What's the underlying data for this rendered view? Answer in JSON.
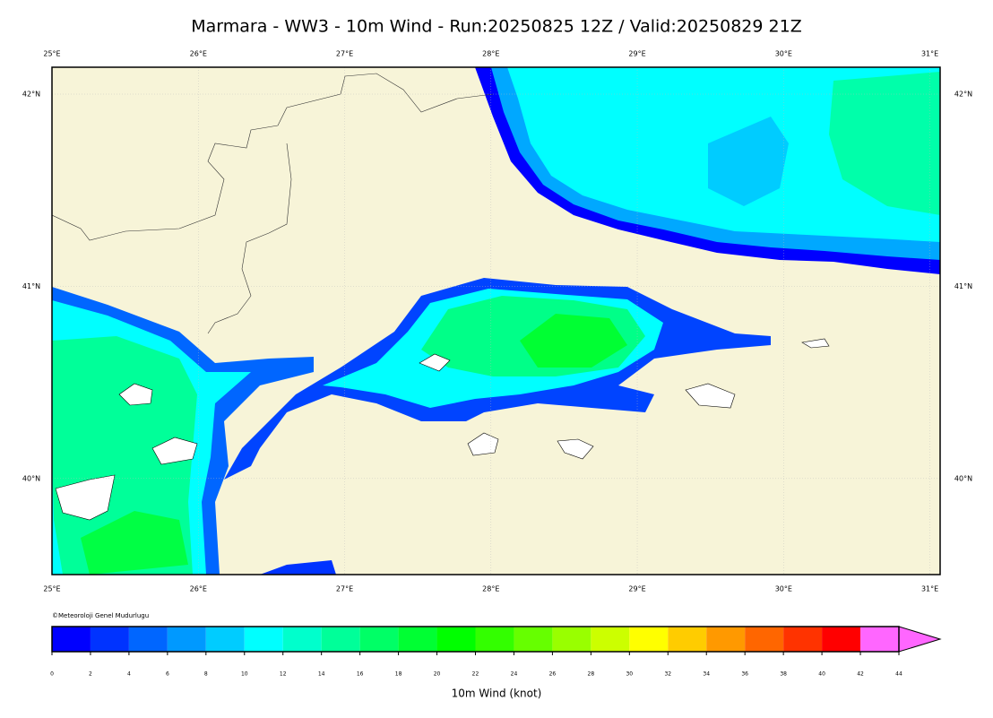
{
  "title": "Marmara - WW3 - 10m Wind - Run:20250825 12Z / Valid:20250829 21Z",
  "map": {
    "lonlim": [
      25,
      31.07
    ],
    "latlim": [
      39.5,
      42.14
    ],
    "lon_ticks": [
      {
        "value": 25,
        "label": "25°E"
      },
      {
        "value": 26,
        "label": "26°E"
      },
      {
        "value": 27,
        "label": "27°E"
      },
      {
        "value": 28,
        "label": "28°E"
      },
      {
        "value": 29,
        "label": "29°E"
      },
      {
        "value": 30,
        "label": "30°E"
      },
      {
        "value": 31,
        "label": "31°E"
      }
    ],
    "lat_ticks": [
      {
        "value": 42,
        "label": "42°N"
      },
      {
        "value": 41,
        "label": "41°N"
      },
      {
        "value": 40,
        "label": "40°N"
      }
    ]
  },
  "credit": "©Meteoroloji Genel Mudurlugu",
  "colorbar": {
    "label": "10m Wind (knot)",
    "ticks": [
      0,
      2,
      4,
      6,
      8,
      10,
      12,
      14,
      16,
      18,
      20,
      22,
      24,
      26,
      28,
      30,
      32,
      34,
      36,
      38,
      40,
      42,
      44
    ],
    "colors": [
      "#0000ff",
      "#0033ff",
      "#0066ff",
      "#0099ff",
      "#00ccff",
      "#00ffff",
      "#00ffcc",
      "#00ff99",
      "#00ff66",
      "#00ff33",
      "#00ff00",
      "#33ff00",
      "#66ff00",
      "#99ff00",
      "#ccff00",
      "#ffff00",
      "#ffcc00",
      "#ff9900",
      "#ff6600",
      "#ff3300",
      "#ff0000",
      "#ff66ff"
    ],
    "over_color": "#ff66ff"
  }
}
